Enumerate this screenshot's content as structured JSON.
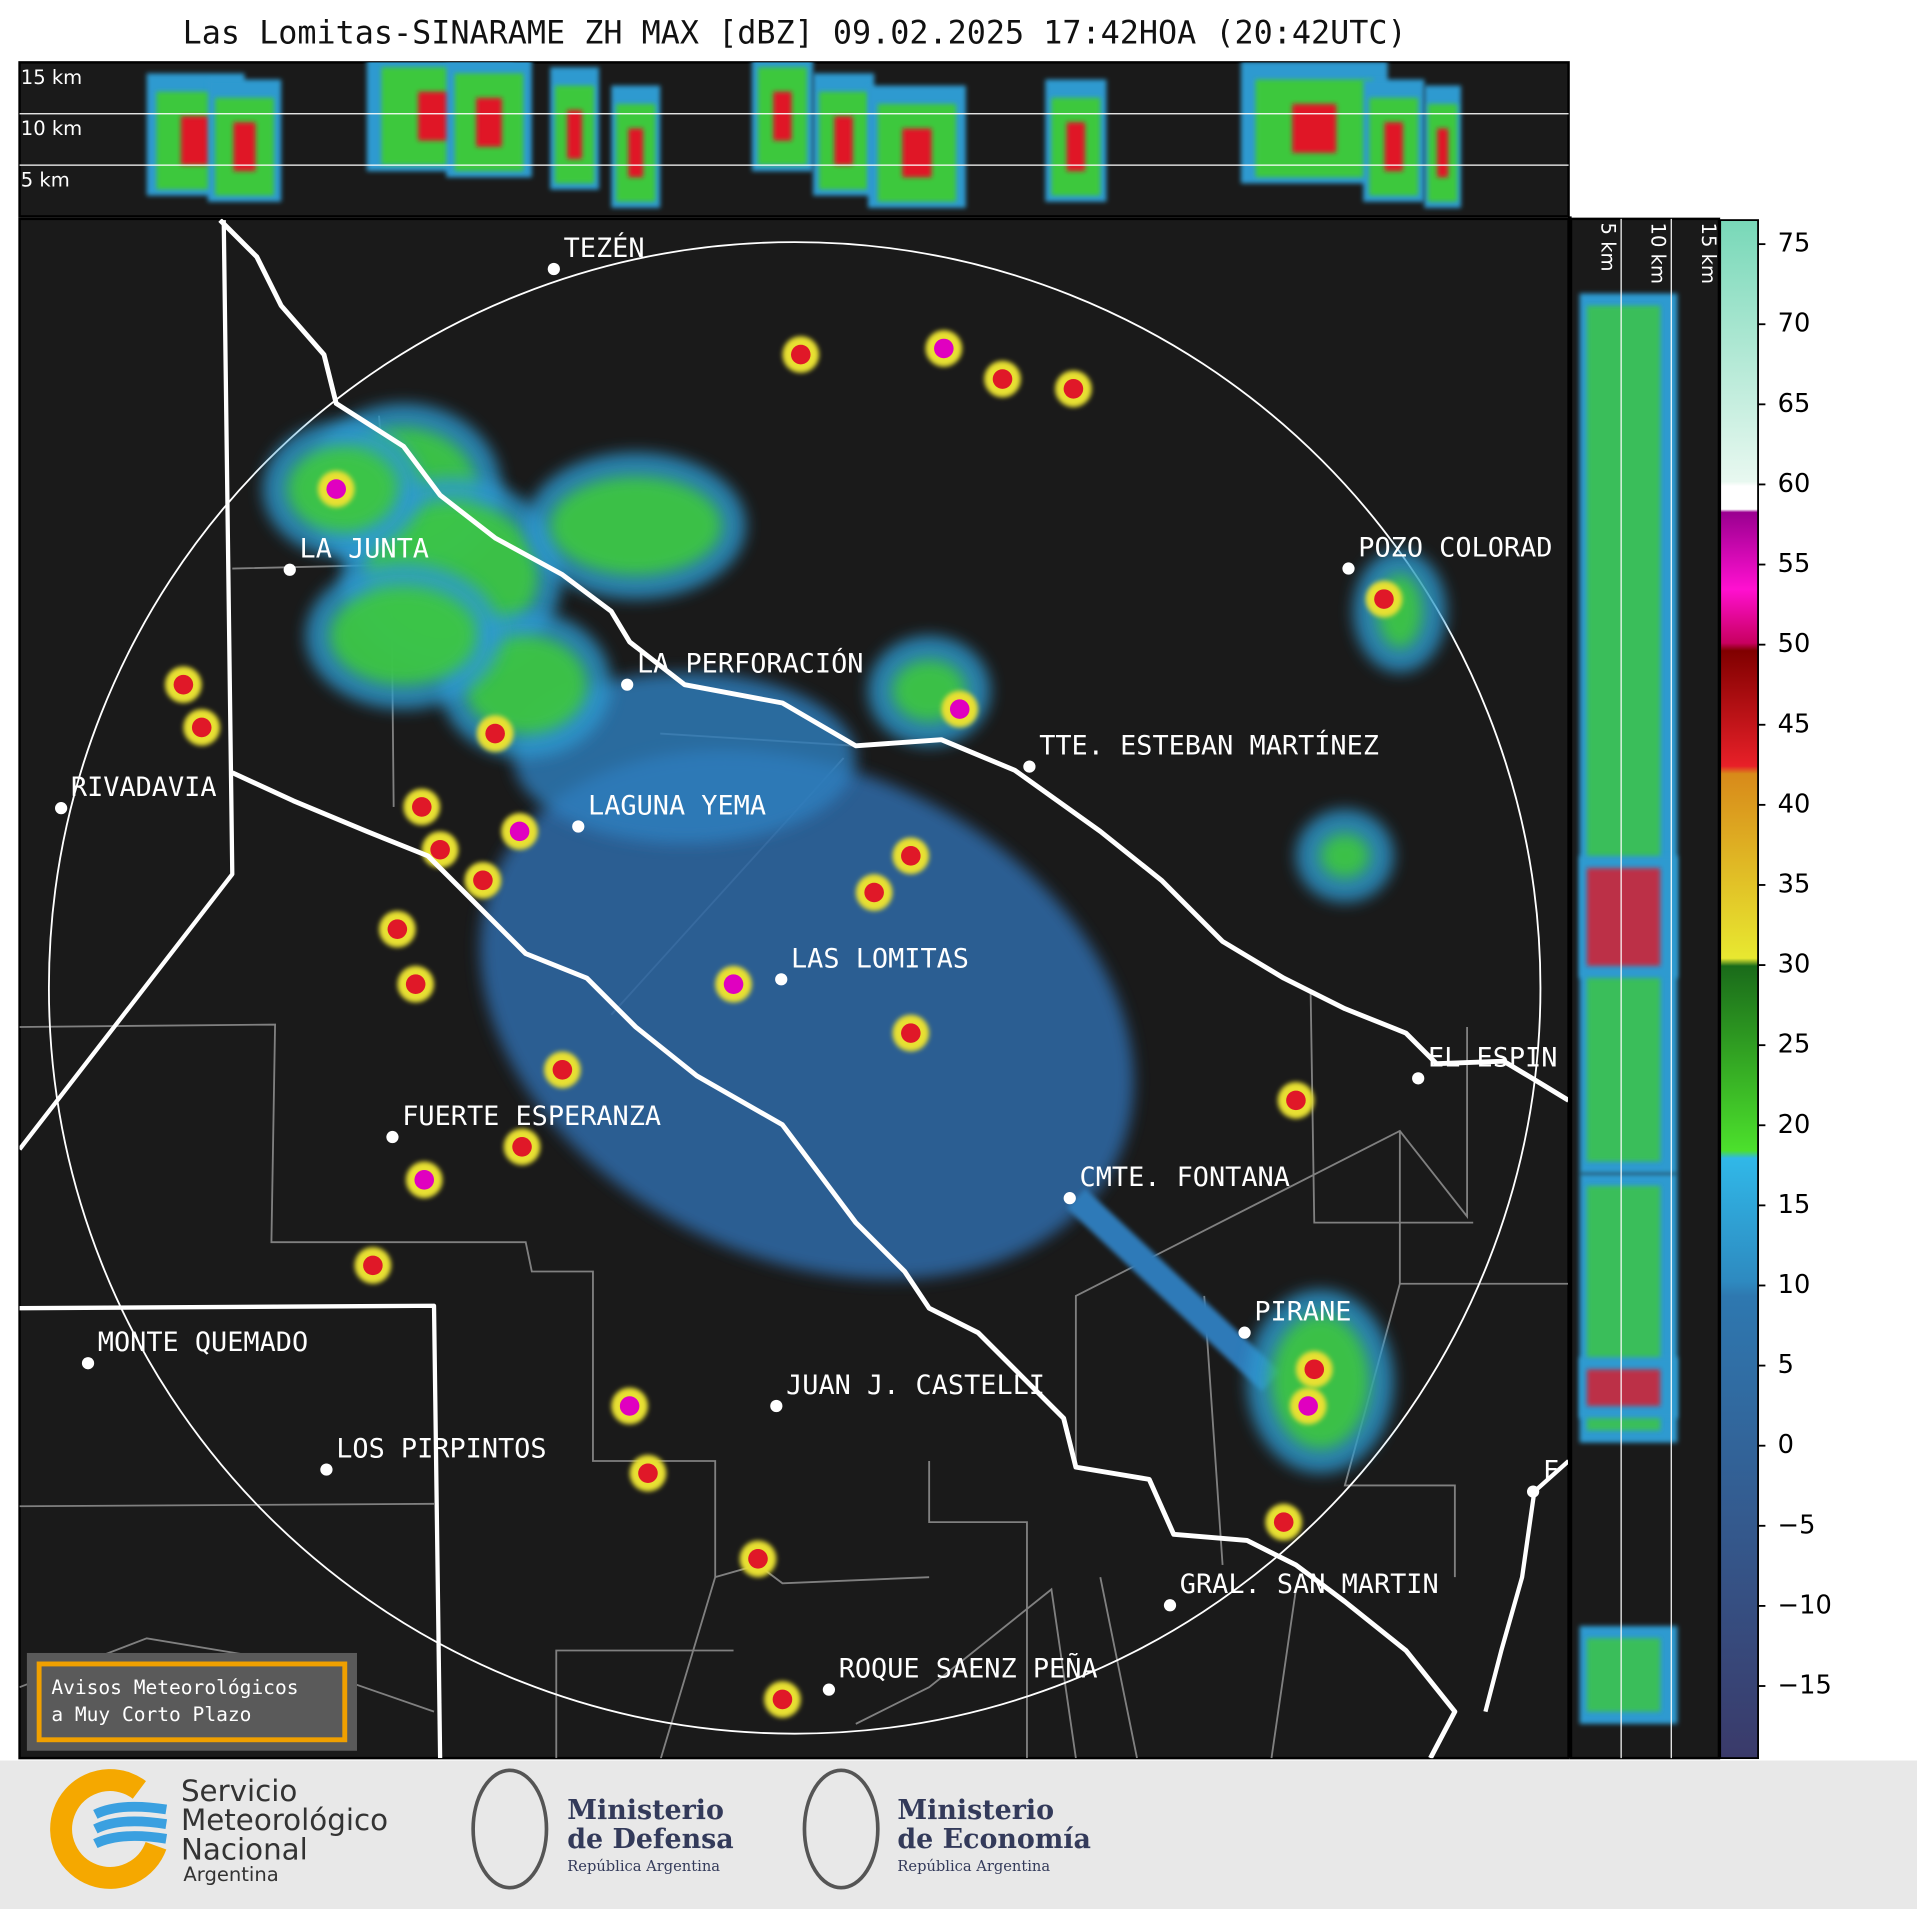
{
  "header": {
    "title": "Las Lomitas-SINARAME ZH MAX [dBZ] 09.02.2025 17:42HOA (20:42UTC)"
  },
  "top_panel": {
    "height_labels": [
      "15 km",
      "10 km",
      "5 km"
    ]
  },
  "side_panel": {
    "height_labels": [
      "5 km",
      "10 km",
      "15 km"
    ]
  },
  "colorbar": {
    "range": [
      -19.5,
      76.5
    ],
    "ticks": [
      75,
      70,
      65,
      60,
      55,
      50,
      45,
      40,
      35,
      30,
      25,
      20,
      15,
      10,
      5,
      0,
      {
        "value": -5,
        "label": "−5"
      },
      {
        "value": -10,
        "label": "−10"
      },
      {
        "value": -15,
        "label": "−15"
      }
    ]
  },
  "map": {
    "places": [
      "TEZÉN",
      "LA JUNTA",
      "LA PERFORACIÓN",
      "RIVADAVIA",
      "LAGUNA YEMA",
      "TTE. ESTEBAN MARTÍNEZ",
      "POZO COLORAD",
      "LAS LOMITAS",
      "EL ESPIN",
      "FUERTE ESPERANZA",
      "CMTE. FONTANA",
      "PIRANE",
      "MONTE QUEMADO",
      "JUAN J. CASTELLI",
      "LOS PIRPINTOS",
      "GRAL. SAN MARTIN",
      "ROQUE SAENZ PEÑA",
      "F"
    ]
  },
  "notice": {
    "lines": [
      "Avisos Meteorológicos",
      "a Muy Corto Plazo"
    ]
  },
  "logos": {
    "smn": [
      "Servicio",
      "Meteorológico",
      "Nacional",
      "Argentina"
    ],
    "defensa": [
      "Ministerio",
      "de Defensa",
      "República Argentina"
    ],
    "economia": [
      "Ministerio",
      "de Economía",
      "República Argentina"
    ]
  }
}
